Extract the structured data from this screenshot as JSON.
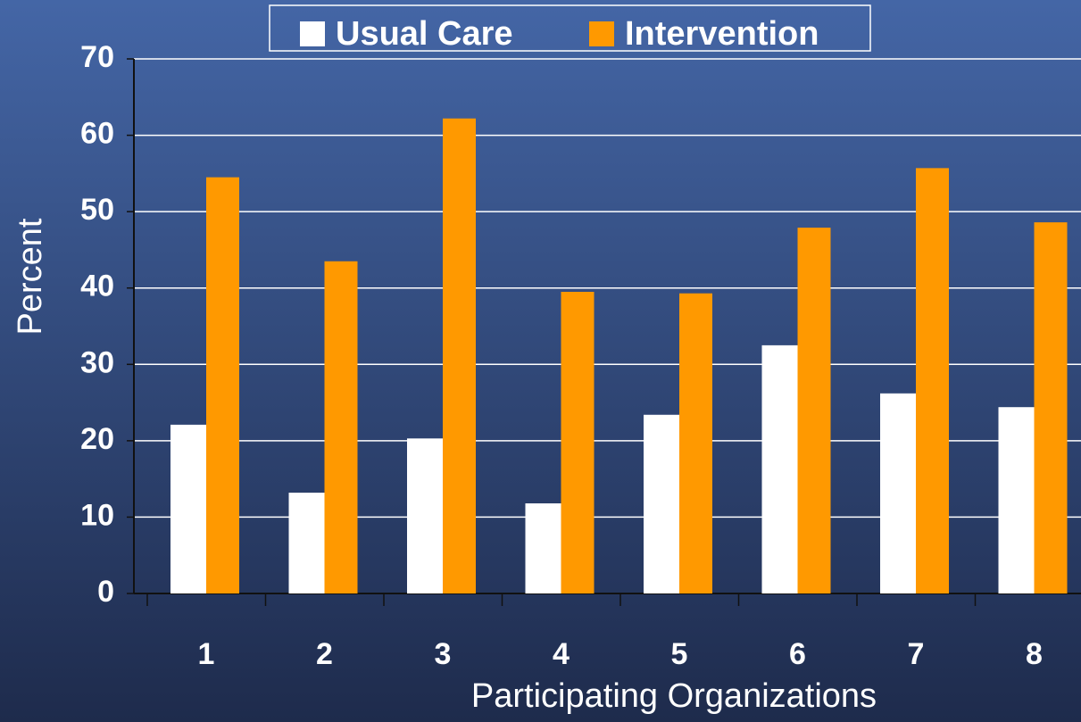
{
  "chart_data": {
    "type": "bar",
    "categories": [
      "1",
      "2",
      "3",
      "4",
      "5",
      "6",
      "7",
      "8"
    ],
    "series": [
      {
        "name": "Usual Care",
        "color": "#ffffff",
        "values": [
          22.1,
          13.2,
          20.3,
          11.8,
          23.4,
          32.5,
          26.2,
          24.4
        ]
      },
      {
        "name": "Intervention",
        "color": "#ff9900",
        "values": [
          54.5,
          43.5,
          62.2,
          39.5,
          39.3,
          47.9,
          55.7,
          48.6
        ]
      }
    ],
    "y_label": "Percent",
    "x_label": "Participating Organizations",
    "ylim": [
      0,
      70
    ],
    "yticks": [
      0,
      10,
      20,
      30,
      40,
      50,
      60,
      70
    ],
    "grid": true
  }
}
